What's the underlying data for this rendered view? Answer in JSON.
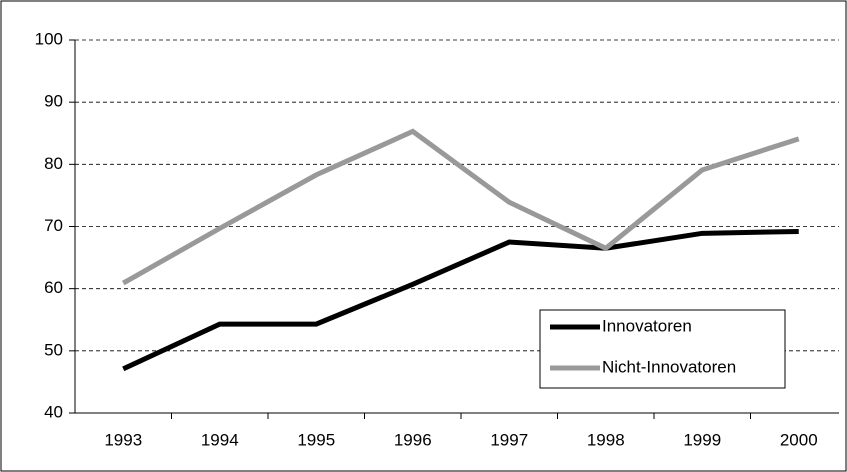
{
  "chart_data": {
    "type": "line",
    "categories": [
      "1993",
      "1994",
      "1995",
      "1996",
      "1997",
      "1998",
      "1999",
      "2000"
    ],
    "series": [
      {
        "name": "Innovatoren",
        "color": "#000000",
        "values": [
          47.1,
          54.3,
          54.3,
          60.7,
          67.5,
          66.5,
          68.9,
          69.2
        ]
      },
      {
        "name": "Nicht-Innovatoren",
        "color": "#999999",
        "values": [
          60.9,
          69.7,
          78.3,
          85.3,
          73.9,
          66.5,
          79.1,
          84.1
        ]
      }
    ],
    "ylim": [
      40,
      100
    ],
    "yticks": [
      40,
      50,
      60,
      70,
      80,
      90,
      100
    ],
    "grid": true,
    "legend": "lower right"
  }
}
